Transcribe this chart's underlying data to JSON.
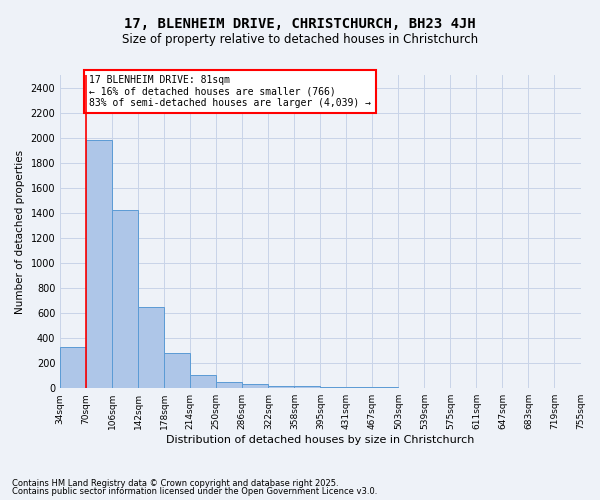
{
  "title_line1": "17, BLENHEIM DRIVE, CHRISTCHURCH, BH23 4JH",
  "title_line2": "Size of property relative to detached houses in Christchurch",
  "xlabel": "Distribution of detached houses by size in Christchurch",
  "ylabel": "Number of detached properties",
  "bar_values": [
    325,
    1980,
    1420,
    650,
    285,
    105,
    50,
    35,
    20,
    15,
    10,
    8,
    6,
    5,
    4,
    3,
    2,
    2,
    1,
    1
  ],
  "bin_labels": [
    "34sqm",
    "70sqm",
    "106sqm",
    "142sqm",
    "178sqm",
    "214sqm",
    "250sqm",
    "286sqm",
    "322sqm",
    "358sqm",
    "395sqm",
    "431sqm",
    "467sqm",
    "503sqm",
    "539sqm",
    "575sqm",
    "611sqm",
    "647sqm",
    "683sqm",
    "719sqm",
    "755sqm"
  ],
  "bar_color": "#aec6e8",
  "bar_edge_color": "#5b9bd5",
  "grid_color": "#c8d4e8",
  "vline_x": 1,
  "vline_color": "red",
  "annotation_text": "17 BLENHEIM DRIVE: 81sqm\n← 16% of detached houses are smaller (766)\n83% of semi-detached houses are larger (4,039) →",
  "annotation_box_color": "red",
  "annotation_box_fill": "white",
  "ylim": [
    0,
    2500
  ],
  "yticks": [
    0,
    200,
    400,
    600,
    800,
    1000,
    1200,
    1400,
    1600,
    1800,
    2000,
    2200,
    2400
  ],
  "footnote1": "Contains HM Land Registry data © Crown copyright and database right 2025.",
  "footnote2": "Contains public sector information licensed under the Open Government Licence v3.0.",
  "bg_color": "#eef2f8"
}
